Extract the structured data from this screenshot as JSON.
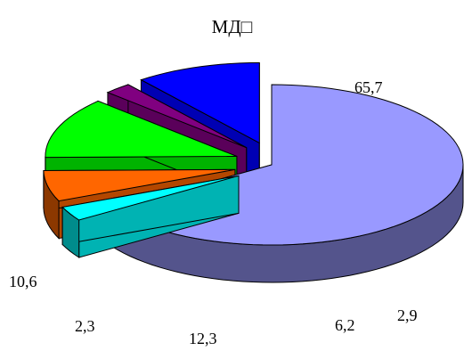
{
  "chart_data": {
    "type": "pie",
    "style": "3d-exploded",
    "title": "МД□",
    "slices": [
      {
        "label": "65,7",
        "value": 65.7,
        "color": "#9999FF",
        "exploded": false
      },
      {
        "label": "2,9",
        "value": 2.9,
        "color": "#00FFFF",
        "exploded": true
      },
      {
        "label": "6,2",
        "value": 6.2,
        "color": "#FF6600",
        "exploded": true
      },
      {
        "label": "12,3",
        "value": 12.3,
        "color": "#00FF00",
        "exploded": true
      },
      {
        "label": "2,3",
        "value": 2.3,
        "color": "#800080",
        "exploded": true
      },
      {
        "label": "10,6",
        "value": 10.6,
        "color": "#0000FF",
        "exploded": true
      }
    ],
    "legend": "none",
    "xlabel": "",
    "ylabel": ""
  }
}
